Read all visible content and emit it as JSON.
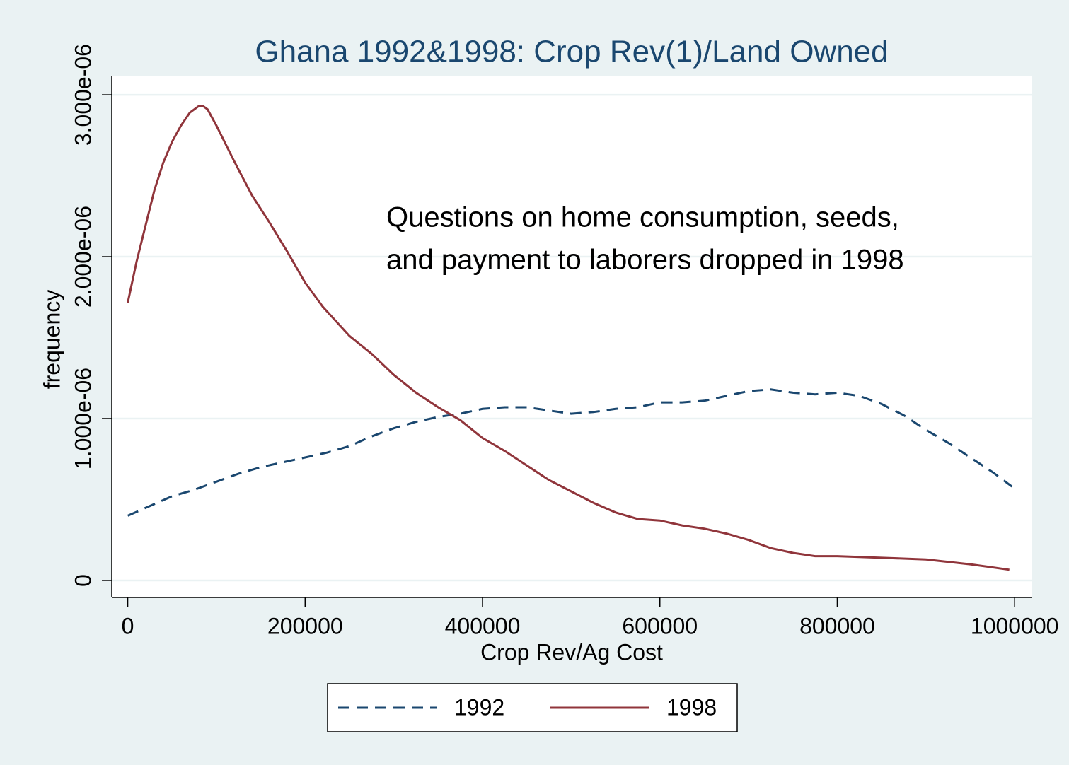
{
  "chart_data": {
    "type": "line",
    "title": "Ghana 1992&1998: Crop Rev(1)/Land Owned",
    "x_label": "Crop Rev/Ag Cost",
    "y_label": "frequency",
    "annotation": [
      "Questions on home consumption, seeds,",
      "and payment to laborers dropped in 1998"
    ],
    "xlim": [
      -18000,
      1019000
    ],
    "ylim": [
      -1.05e-07,
      3.114e-06
    ],
    "xticks": [
      0,
      200000,
      400000,
      600000,
      800000,
      1000000
    ],
    "yticks": [
      0,
      {
        "value": 1e-06,
        "label": "1.000e-06"
      },
      {
        "value": 2e-06,
        "label": "2.000e-06"
      },
      {
        "value": 3e-06,
        "label": "3.000e-06"
      }
    ],
    "grid": true,
    "legend": "bottom",
    "series": [
      {
        "name": "1992",
        "color": "#1a476f",
        "dash": true,
        "x": [
          0,
          25000,
          50000,
          75000,
          100000,
          125000,
          150000,
          175000,
          200000,
          225000,
          250000,
          275000,
          300000,
          325000,
          350000,
          375000,
          400000,
          425000,
          450000,
          475000,
          500000,
          525000,
          550000,
          575000,
          600000,
          625000,
          650000,
          675000,
          700000,
          725000,
          750000,
          775000,
          800000,
          825000,
          850000,
          875000,
          900000,
          925000,
          950000,
          975000,
          997000
        ],
        "values": [
          4e-07,
          4.6e-07,
          5.2e-07,
          5.6e-07,
          6.1e-07,
          6.6e-07,
          7e-07,
          7.3e-07,
          7.6e-07,
          7.9e-07,
          8.3e-07,
          8.9e-07,
          9.4e-07,
          9.8e-07,
          1.01e-06,
          1.03e-06,
          1.06e-06,
          1.07e-06,
          1.07e-06,
          1.05e-06,
          1.03e-06,
          1.04e-06,
          1.06e-06,
          1.07e-06,
          1.1e-06,
          1.1e-06,
          1.11e-06,
          1.14e-06,
          1.17e-06,
          1.18e-06,
          1.16e-06,
          1.15e-06,
          1.16e-06,
          1.14e-06,
          1.09e-06,
          1.02e-06,
          9.3e-07,
          8.5e-07,
          7.6e-07,
          6.7e-07,
          5.8e-07
        ]
      },
      {
        "name": "1998",
        "color": "#90353b",
        "dash": false,
        "x": [
          0,
          10000,
          20000,
          30000,
          40000,
          50000,
          60000,
          70000,
          80000,
          85000,
          90000,
          100000,
          120000,
          140000,
          160000,
          180000,
          200000,
          220000,
          250000,
          275000,
          300000,
          325000,
          350000,
          375000,
          400000,
          425000,
          450000,
          475000,
          500000,
          525000,
          550000,
          575000,
          600000,
          625000,
          650000,
          675000,
          700000,
          725000,
          750000,
          775000,
          800000,
          850000,
          900000,
          950000,
          994000
        ],
        "values": [
          1.716e-06,
          1.97e-06,
          2.19e-06,
          2.41e-06,
          2.58e-06,
          2.71e-06,
          2.81e-06,
          2.89e-06,
          2.93e-06,
          2.93e-06,
          2.91e-06,
          2.81e-06,
          2.59e-06,
          2.38e-06,
          2.21e-06,
          2.03e-06,
          1.84e-06,
          1.69e-06,
          1.51e-06,
          1.4e-06,
          1.27e-06,
          1.16e-06,
          1.07e-06,
          9.9e-07,
          8.8e-07,
          8e-07,
          7.1e-07,
          6.2e-07,
          5.5e-07,
          4.8e-07,
          4.2e-07,
          3.8e-07,
          3.7e-07,
          3.4e-07,
          3.2e-07,
          2.9e-07,
          2.5e-07,
          2e-07,
          1.7e-07,
          1.5e-07,
          1.5e-07,
          1.4e-07,
          1.3e-07,
          1e-07,
          6.6e-08
        ]
      }
    ]
  }
}
